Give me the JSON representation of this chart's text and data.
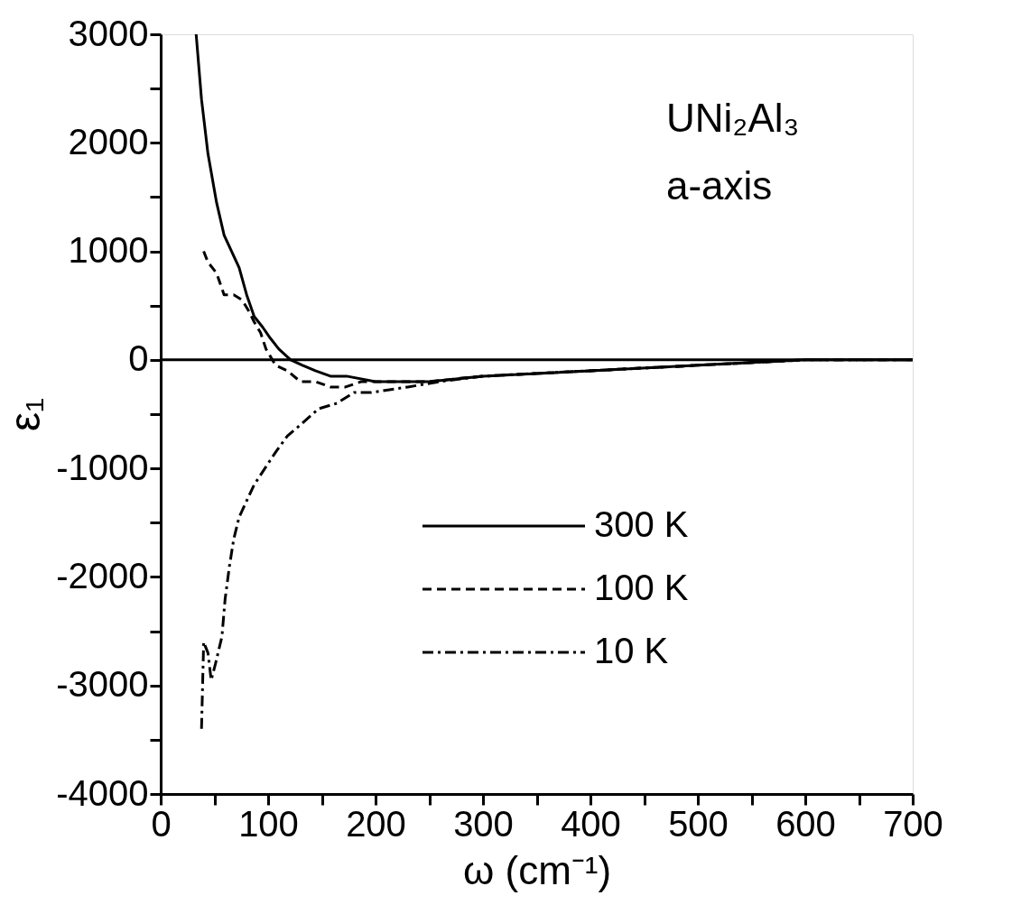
{
  "chart_data": {
    "type": "line",
    "xlabel": "ω (cm⁻¹)",
    "ylabel": "ε₁",
    "annotations": [
      "UNi₂Al₃",
      "a-axis"
    ],
    "xlim": [
      0,
      700
    ],
    "ylim": [
      -4000,
      3000
    ],
    "xticks": [
      0,
      {
        "value": 50,
        "label": null
      },
      100,
      {
        "value": 150,
        "label": null
      },
      200,
      {
        "value": 250,
        "label": null
      },
      300,
      {
        "value": 350,
        "label": null
      },
      400,
      {
        "value": 450,
        "label": null
      },
      500,
      {
        "value": 550,
        "label": null
      },
      600,
      {
        "value": 650,
        "label": null
      },
      700
    ],
    "yticks": [
      -4000,
      {
        "value": -3500,
        "label": null
      },
      -3000,
      {
        "value": -2500,
        "label": null
      },
      -2000,
      {
        "value": -1500,
        "label": null
      },
      -1000,
      {
        "value": -500,
        "label": null
      },
      0,
      {
        "value": 500,
        "label": null
      },
      1000,
      {
        "value": 1500,
        "label": null
      },
      2000,
      {
        "value": 2500,
        "label": null
      },
      3000
    ],
    "grid": false,
    "legend": "bottom right",
    "marker": "none",
    "ref_lines": [
      {
        "axis": "y",
        "value": 0,
        "color": "#000000"
      }
    ],
    "series": [
      {
        "name": "300 K",
        "color": "#000000",
        "line_style": "solid",
        "x": [
          33,
          38,
          44,
          52,
          59,
          66,
          73,
          80,
          87,
          95,
          102,
          110,
          121,
          132,
          144,
          158,
          173,
          200,
          250,
          300,
          400,
          500,
          600,
          700
        ],
        "values": [
          3000,
          2400,
          1900,
          1450,
          1150,
          1000,
          850,
          600,
          400,
          300,
          200,
          100,
          0,
          -50,
          -100,
          -150,
          -150,
          -200,
          -200,
          -150,
          -100,
          -50,
          0,
          0
        ]
      },
      {
        "name": "100 K",
        "color": "#000000",
        "line_style": "dashed",
        "x": [
          40,
          44,
          52,
          59,
          68,
          76,
          82,
          87,
          93,
          98,
          107,
          118,
          130,
          144,
          158,
          172,
          187,
          220,
          250,
          300,
          400,
          500,
          600,
          700
        ],
        "values": [
          1000,
          900,
          800,
          600,
          600,
          550,
          450,
          350,
          250,
          100,
          -50,
          -100,
          -200,
          -200,
          -250,
          -250,
          -200,
          -200,
          -200,
          -150,
          -100,
          -50,
          0,
          0
        ]
      },
      {
        "name": "10 K",
        "color": "#000000",
        "line_style": "dashdot",
        "x": [
          38,
          39,
          40,
          44,
          47,
          51,
          57,
          60,
          64,
          68,
          73,
          80,
          87,
          97,
          107,
          118,
          130,
          147,
          164,
          180,
          196,
          230,
          260,
          300,
          400,
          500,
          600,
          700
        ],
        "values": [
          -3400,
          -3000,
          -2600,
          -2700,
          -2950,
          -2800,
          -2550,
          -2200,
          -1900,
          -1650,
          -1450,
          -1300,
          -1150,
          -1000,
          -850,
          -700,
          -600,
          -450,
          -400,
          -300,
          -300,
          -250,
          -200,
          -150,
          -100,
          -50,
          0,
          0
        ]
      }
    ]
  }
}
